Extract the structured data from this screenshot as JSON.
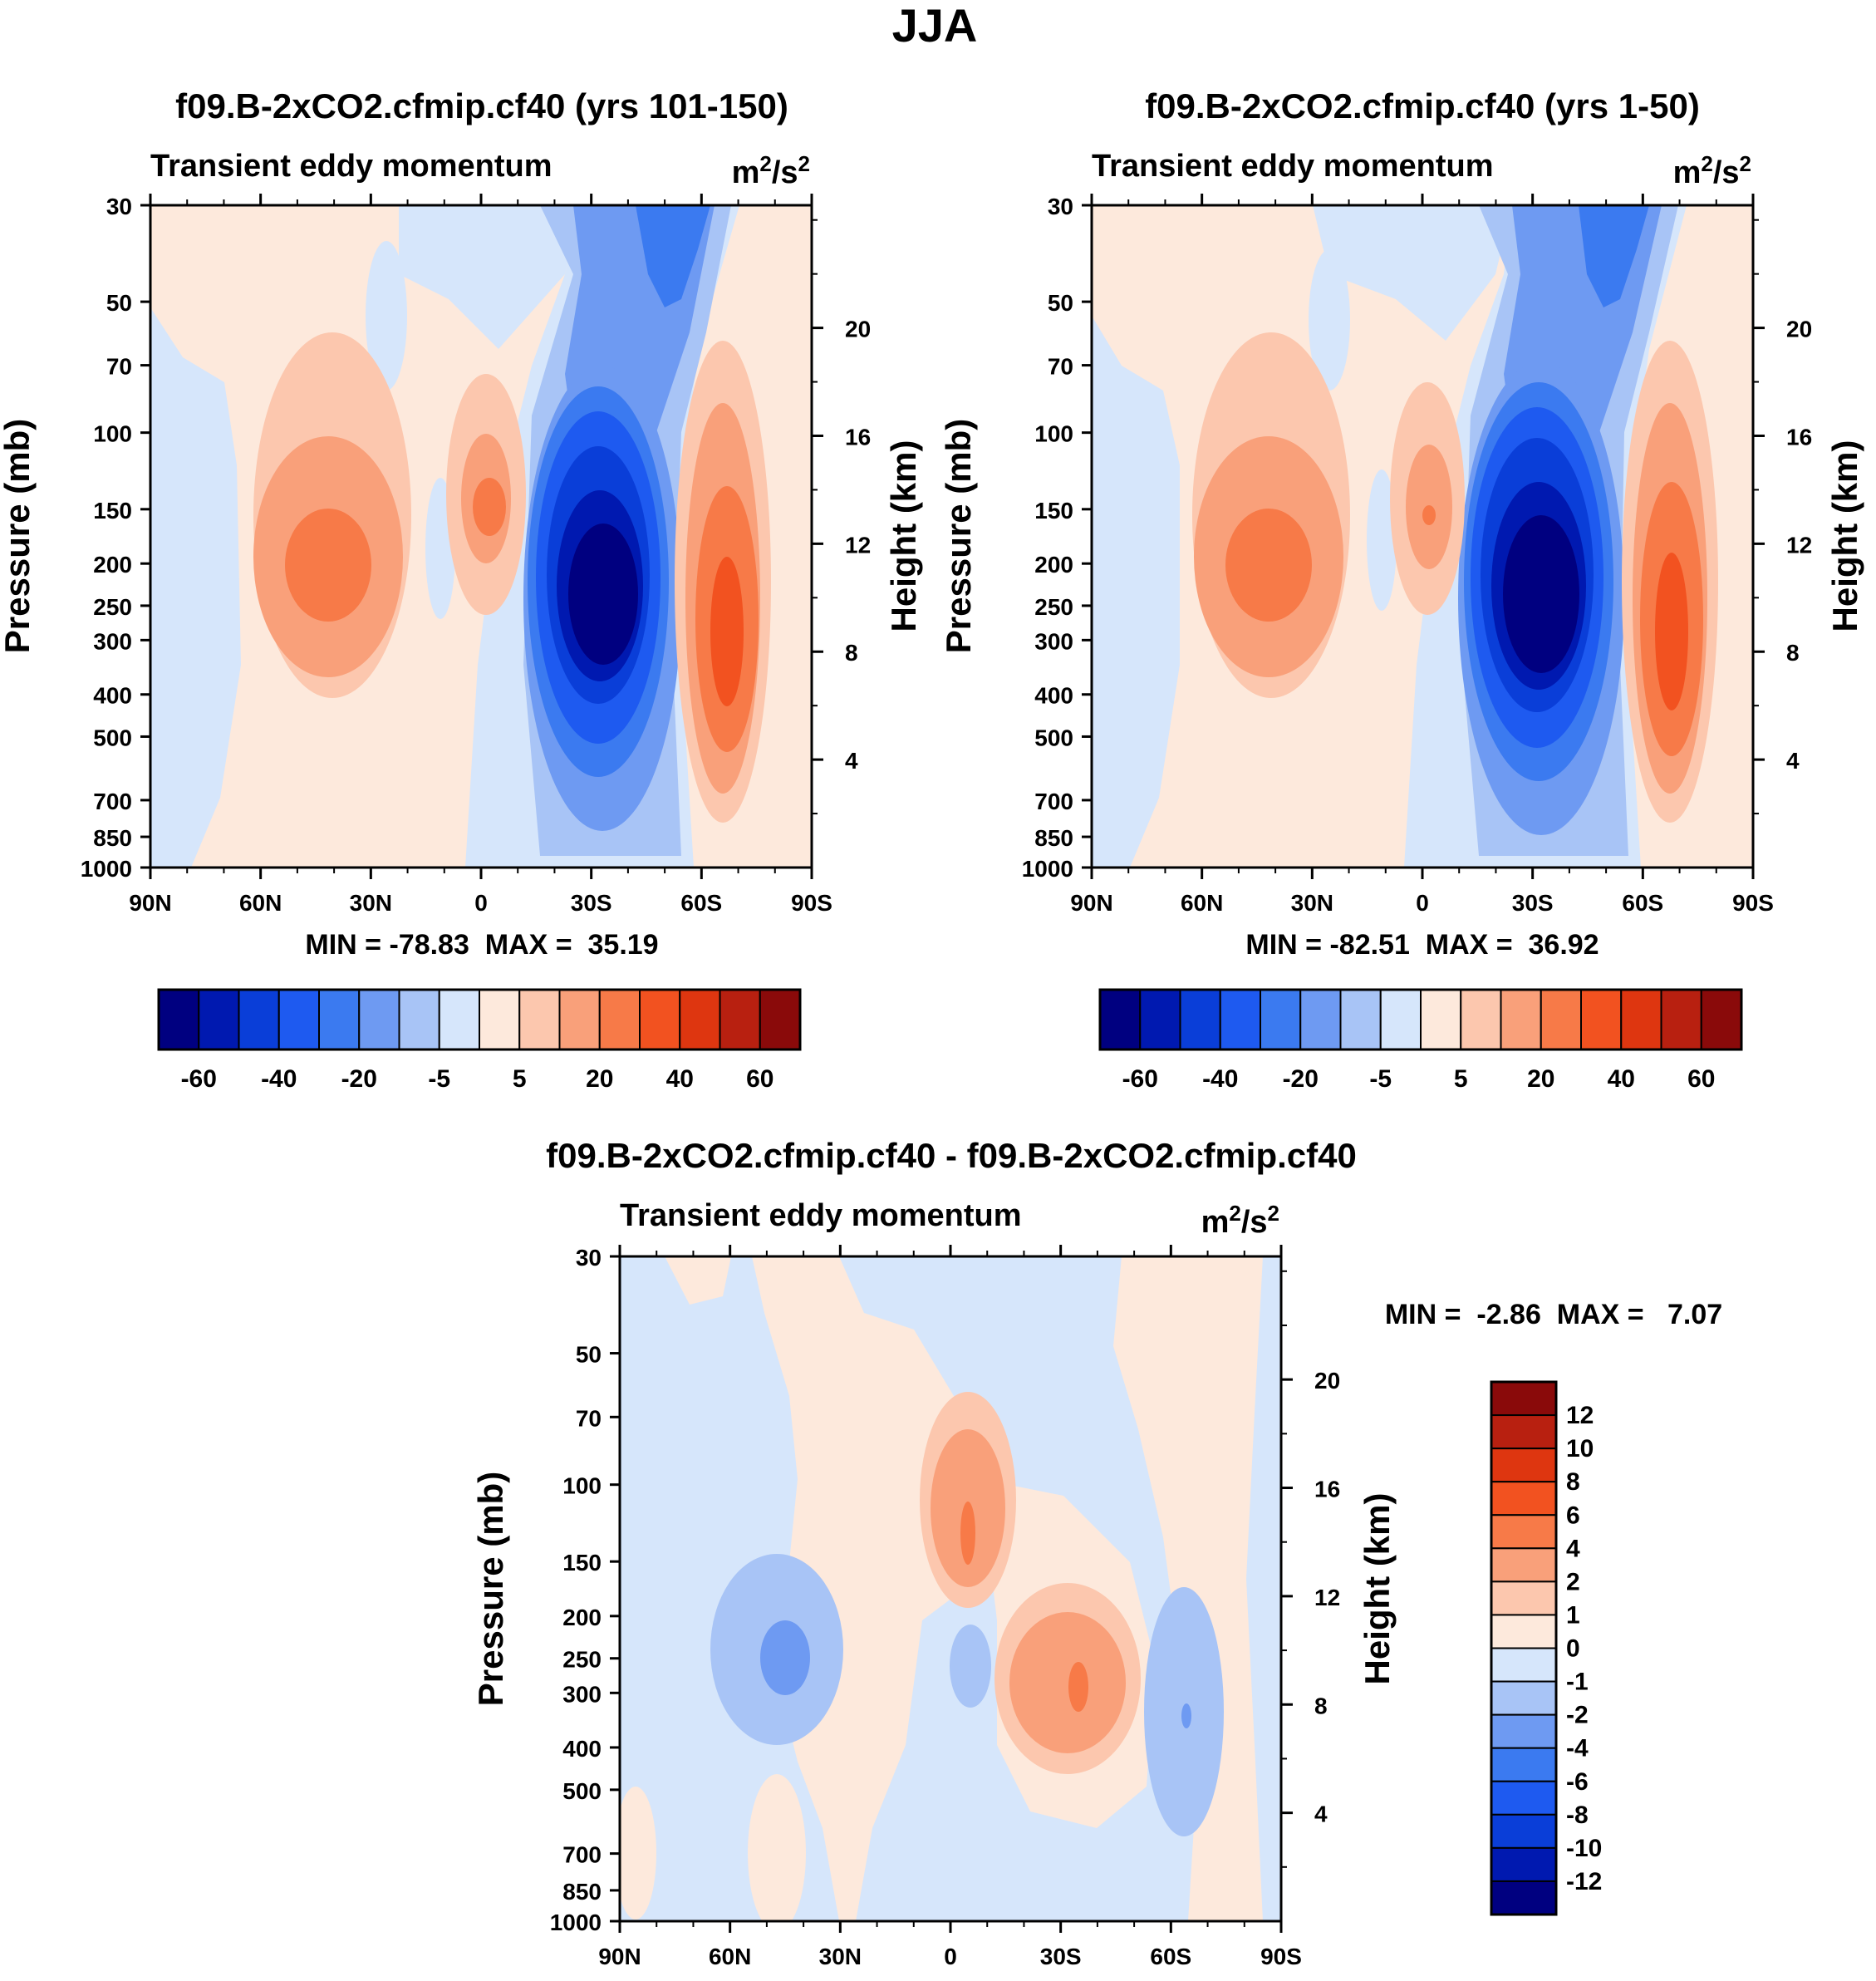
{
  "figure": {
    "title": "JJA"
  },
  "colors": {
    "bwr": [
      "#000080",
      "#0019b0",
      "#0a3ed8",
      "#1e5af0",
      "#3b7af0",
      "#6e9af2",
      "#a8c4f6",
      "#d6e6fb",
      "#fde9dc",
      "#fcc7ae",
      "#f9a07a",
      "#f77a48",
      "#f25220",
      "#de3610",
      "#b82010",
      "#8a0a0a"
    ]
  },
  "chart_data": [
    {
      "id": "top-left",
      "type": "contour",
      "title": "f09.B-2xCO2.cfmip.cf40 (yrs 101-150)",
      "subtitle_left": "Transient eddy momentum",
      "units": "m²/s²",
      "ylabel": "Pressure (mb)",
      "y2label": "Height (km)",
      "x_ticks": [
        "90N",
        "60N",
        "30N",
        "0",
        "30S",
        "60S",
        "90S"
      ],
      "y_ticks": [
        "30",
        "50",
        "70",
        "100",
        "150",
        "200",
        "250",
        "300",
        "400",
        "500",
        "700",
        "850",
        "1000"
      ],
      "y2_ticks": [
        "20",
        "16",
        "12",
        "8",
        "4"
      ],
      "min": -78.83,
      "max": 35.19,
      "stats_text": "MIN = -78.83  MAX =  35.19",
      "colorbar_labels": [
        "-60",
        "-40",
        "-20",
        "-5",
        "5",
        "20",
        "40",
        "60"
      ],
      "features": [
        {
          "lat": 37,
          "p": 200,
          "value": 25
        },
        {
          "lat": -2,
          "p": 150,
          "value": 20
        },
        {
          "lat": -33,
          "p": 250,
          "value": -78.83
        },
        {
          "lat": -68,
          "p": 300,
          "value": 35.19
        },
        {
          "lat": -40,
          "p": 30,
          "value": -30
        }
      ]
    },
    {
      "id": "top-right",
      "type": "contour",
      "title": "f09.B-2xCO2.cfmip.cf40 (yrs 1-50)",
      "subtitle_left": "Transient eddy momentum",
      "units": "m²/s²",
      "ylabel": "Pressure (mb)",
      "y2label": "Height (km)",
      "x_ticks": [
        "90N",
        "60N",
        "30N",
        "0",
        "30S",
        "60S",
        "90S"
      ],
      "y_ticks": [
        "30",
        "50",
        "70",
        "100",
        "150",
        "200",
        "250",
        "300",
        "400",
        "500",
        "700",
        "850",
        "1000"
      ],
      "y2_ticks": [
        "20",
        "16",
        "12",
        "8",
        "4"
      ],
      "min": -82.51,
      "max": 36.92,
      "stats_text": "MIN = -82.51  MAX =  36.92",
      "colorbar_labels": [
        "-60",
        "-40",
        "-20",
        "-5",
        "5",
        "20",
        "40",
        "60"
      ],
      "features": [
        {
          "lat": 37,
          "p": 200,
          "value": 25
        },
        {
          "lat": -2,
          "p": 150,
          "value": 15
        },
        {
          "lat": -33,
          "p": 250,
          "value": -82.51
        },
        {
          "lat": -68,
          "p": 300,
          "value": 36.92
        },
        {
          "lat": -52,
          "p": 30,
          "value": -30
        }
      ]
    },
    {
      "id": "bottom",
      "type": "contour",
      "title": "f09.B-2xCO2.cfmip.cf40 - f09.B-2xCO2.cfmip.cf40",
      "subtitle_left": "Transient eddy momentum",
      "units": "m²/s²",
      "ylabel": "Pressure (mb)",
      "y2label": "Height (km)",
      "x_ticks": [
        "90N",
        "60N",
        "30N",
        "0",
        "30S",
        "60S",
        "90S"
      ],
      "y_ticks": [
        "30",
        "50",
        "70",
        "100",
        "150",
        "200",
        "250",
        "300",
        "400",
        "500",
        "700",
        "850",
        "1000"
      ],
      "y2_ticks": [
        "20",
        "16",
        "12",
        "8",
        "4"
      ],
      "min": -2.86,
      "max": 7.07,
      "stats_text": "MIN =  -2.86  MAX =   7.07",
      "colorbar_labels": [
        "12",
        "10",
        "8",
        "6",
        "4",
        "2",
        "1",
        "0",
        "-1",
        "-2",
        "-4",
        "-6",
        "-8",
        "-10",
        "-12"
      ],
      "features": [
        {
          "lat": 45,
          "p": 250,
          "value": -2.86
        },
        {
          "lat": -5,
          "p": 130,
          "value": 7.07
        },
        {
          "lat": -33,
          "p": 300,
          "value": 5
        },
        {
          "lat": -62,
          "p": 300,
          "value": -2
        },
        {
          "lat": -10,
          "p": 250,
          "value": -1.5
        }
      ]
    }
  ]
}
